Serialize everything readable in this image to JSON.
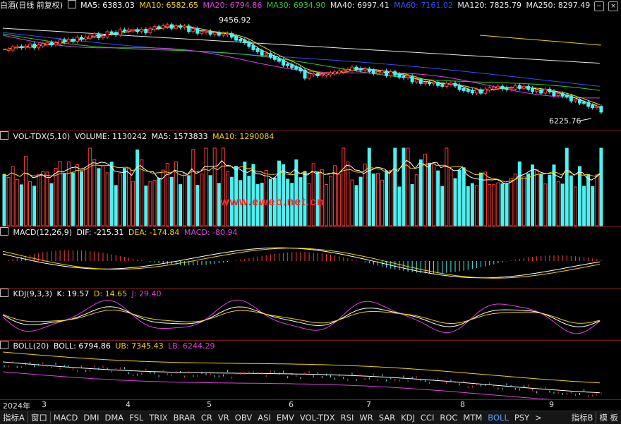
{
  "main": {
    "title": "白酒(日线 前复权)",
    "ma": [
      {
        "label": "MA5: 6383.03",
        "color": "#ffffff"
      },
      {
        "label": "MA10: 6582.65",
        "color": "#f2d200"
      },
      {
        "label": "MA20: 6794.86",
        "color": "#e040e0"
      },
      {
        "label": "MA30: 6934.90",
        "color": "#30c830"
      },
      {
        "label": "MA40: 6997.41",
        "color": "#e8e8e8"
      },
      {
        "label": "MA60: 7161.02",
        "color": "#3050ff"
      },
      {
        "label": "MA120: 7825.79",
        "color": "#e8e8e8"
      },
      {
        "label": "MA250: 8297.49",
        "color": "#e8e8e8"
      }
    ],
    "high_label": "9456.92",
    "low_label": "6225.76"
  },
  "volume": {
    "title": "VOL-TDX(5,10)",
    "volume_label": "VOLUME: 1130242",
    "ma5_label": "MA5: 1573833",
    "ma10_label": "MA10: 1290084",
    "watermark": "www.eweb.net.cn"
  },
  "macd": {
    "title": "MACD(12,26,9)",
    "dif_label": "DIF: -215.31",
    "dea_label": "DEA: -174.84",
    "macd_label": "MACD: -80.94"
  },
  "kdj": {
    "title": "KDJ(9,3,3)",
    "k_label": "K: 19.57",
    "d_label": "D: 14.65",
    "j_label": "J: 29.40"
  },
  "boll": {
    "title": "BOLL(20)",
    "boll_label": "BOLL: 6794.86",
    "ub_label": "UB: 7345.43",
    "lb_label": "LB: 6244.29"
  },
  "axis": {
    "year": "2024年",
    "months": [
      "3",
      "4",
      "5",
      "6",
      "7",
      "8",
      "9"
    ]
  },
  "tabs": [
    "指标A",
    "窗口",
    "MACD",
    "DMI",
    "DMA",
    "FSL",
    "TRIX",
    "BRAR",
    "CR",
    "VR",
    "OBV",
    "ASI",
    "EMV",
    "VOL-TDX",
    "RSI",
    "WR",
    "SAR",
    "KDJ",
    "CCI",
    "ROC",
    "MTM",
    "BOLL",
    "PSY",
    ">"
  ],
  "active_tab": "BOLL",
  "right_tabs": [
    "指标B",
    "模 板"
  ],
  "colors": {
    "up": "#ff3c3c",
    "down": "#4ff0f0",
    "separator": "#7a1a1a"
  }
}
